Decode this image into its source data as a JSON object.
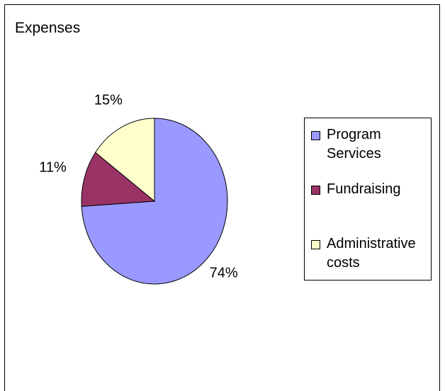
{
  "chart_data": {
    "type": "pie",
    "title": "Expenses",
    "categories": [
      "Program Services",
      "Fundraising",
      "Administrative costs"
    ],
    "values": [
      74,
      11,
      15
    ],
    "data_labels": [
      "74%",
      "11%",
      "15%"
    ],
    "colors": [
      "#9999ff",
      "#993366",
      "#ffffcc"
    ],
    "legend_position": "right"
  }
}
